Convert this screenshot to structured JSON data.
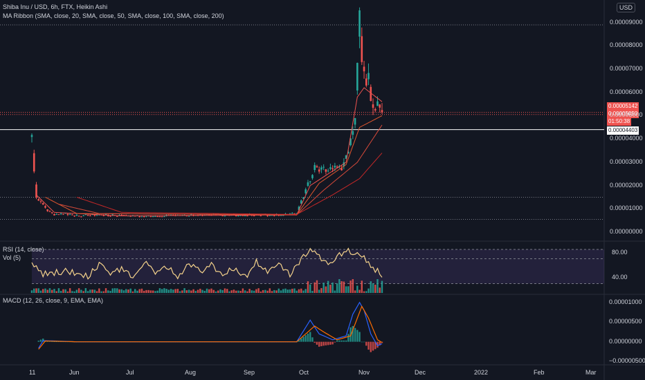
{
  "header": {
    "symbol_line": "Shiba Inu / USD, 6h, FTX, Heikin Ashi",
    "ma_ribbon": "MA Ribbon (SMA, close, 20, SMA, close, 50, SMA, close, 100, SMA, close, 200)",
    "currency": "USD"
  },
  "price_labels": {
    "last_price": "0.00005142",
    "bid_price": "0.00005050",
    "countdown": "01:50:38",
    "hline_price": "0.00004403"
  },
  "rsi": {
    "label": "RSI (14, close)",
    "vol_label": "Vol (5)"
  },
  "macd": {
    "label": "MACD (12, 26, close, 9, EMA, EMA)"
  },
  "colors": {
    "background": "#131722",
    "up": "#26a69a",
    "down": "#ef5350",
    "rsi": "#f5d38c",
    "macd": "#2962ff",
    "signal": "#ff6d00"
  },
  "chart_data": [
    {
      "type": "candlestick",
      "title": "Shiba Inu / USD, 6h, FTX, Heikin Ashi",
      "y_ticks": [
        "0.00009000",
        "0.00008000",
        "0.00007000",
        "0.00006000",
        "0.00005000",
        "0.00004000",
        "0.00003000",
        "0.00002000",
        "0.00001000",
        "0.00000000"
      ],
      "ylim": [
        0,
        8.9e-05
      ],
      "x_ticks": [
        "11",
        "Jun",
        "Jul",
        "Aug",
        "Sep",
        "Oct",
        "Nov",
        "Dec",
        "2022",
        "Feb",
        "Mar"
      ],
      "grid": false,
      "price_key": [
        [
          0,
          4e-05
        ],
        [
          2,
          1.5e-05
        ],
        [
          6,
          1e-05
        ],
        [
          10,
          7.2e-06
        ],
        [
          14,
          8e-06
        ],
        [
          20,
          7e-06
        ],
        [
          30,
          7.5e-06
        ],
        [
          40,
          7e-06
        ],
        [
          50,
          6.8e-06
        ],
        [
          60,
          7e-06
        ],
        [
          70,
          7.2e-06
        ],
        [
          80,
          7.5e-06
        ],
        [
          90,
          7.2e-06
        ],
        [
          100,
          7.4e-06
        ],
        [
          110,
          7.3e-06
        ],
        [
          118,
          8e-06
        ],
        [
          122,
          1.8e-05
        ],
        [
          126,
          2.8e-05
        ],
        [
          130,
          2.7e-05
        ],
        [
          138,
          2.8e-05
        ],
        [
          141,
          3.3e-05
        ],
        [
          144,
          5e-05
        ],
        [
          146,
          8.8e-05
        ],
        [
          148,
          7e-05
        ],
        [
          150,
          6.5e-05
        ],
        [
          153,
          5.5e-05
        ],
        [
          156,
          5.14e-05
        ]
      ],
      "ma_series": [
        {
          "name": "MA 20",
          "key": [
            [
              2,
              1.6e-05
            ],
            [
              10,
              8.5e-06
            ],
            [
              40,
              7e-06
            ],
            [
              118,
              7.4e-06
            ],
            [
              124,
              2e-05
            ],
            [
              140,
              3e-05
            ],
            [
              145,
              5.8e-05
            ],
            [
              148,
              6.2e-05
            ],
            [
              156,
              5.6e-05
            ]
          ]
        },
        {
          "name": "MA 50",
          "key": [
            [
              6,
              1.5e-05
            ],
            [
              20,
              8e-06
            ],
            [
              118,
              7.4e-06
            ],
            [
              128,
              2.1e-05
            ],
            [
              140,
              2.9e-05
            ],
            [
              146,
              4.5e-05
            ],
            [
              156,
              5e-05
            ]
          ]
        },
        {
          "name": "MA 100",
          "key": [
            [
              12,
              1.2e-05
            ],
            [
              30,
              8e-06
            ],
            [
              118,
              7.4e-06
            ],
            [
              130,
              1.8e-05
            ],
            [
              145,
              3e-05
            ],
            [
              156,
              4.6e-05
            ]
          ]
        },
        {
          "name": "MA 200",
          "key": [
            [
              20,
              1.5e-05
            ],
            [
              40,
              8.5e-06
            ],
            [
              118,
              7.6e-06
            ],
            [
              134,
              1.6e-05
            ],
            [
              146,
              2.3e-05
            ],
            [
              156,
              3.4e-05
            ]
          ]
        }
      ],
      "hlines": [
        4.403e-05,
        5.142e-05,
        5.05e-05,
        1.5e-05,
        5.5e-06
      ]
    },
    {
      "type": "line",
      "title": "RSI (14, close)",
      "y_ticks": [
        "80.00",
        "40.00"
      ],
      "ylim": [
        15,
        95
      ],
      "levels": [
        85,
        70,
        30
      ],
      "rsi_key": [
        [
          0,
          60
        ],
        [
          5,
          45
        ],
        [
          15,
          50
        ],
        [
          25,
          42
        ],
        [
          30,
          60
        ],
        [
          35,
          45
        ],
        [
          40,
          55
        ],
        [
          45,
          40
        ],
        [
          50,
          65
        ],
        [
          55,
          45
        ],
        [
          60,
          58
        ],
        [
          65,
          40
        ],
        [
          70,
          62
        ],
        [
          75,
          50
        ],
        [
          80,
          60
        ],
        [
          85,
          45
        ],
        [
          90,
          55
        ],
        [
          95,
          40
        ],
        [
          100,
          65
        ],
        [
          105,
          48
        ],
        [
          110,
          60
        ],
        [
          115,
          45
        ],
        [
          120,
          70
        ],
        [
          124,
          85
        ],
        [
          128,
          75
        ],
        [
          132,
          58
        ],
        [
          136,
          72
        ],
        [
          140,
          85
        ],
        [
          144,
          80
        ],
        [
          148,
          70
        ],
        [
          152,
          55
        ],
        [
          156,
          45
        ]
      ]
    },
    {
      "type": "line",
      "title": "MACD (12, 26, close, 9, EMA, EMA)",
      "y_ticks": [
        "0.00001000",
        "0.00000500",
        "0.00000000",
        "−0.00000500"
      ],
      "ylim": [
        -5.5e-06,
        1.1e-05
      ],
      "macd_key": [
        [
          0,
          -4.5e-06
        ],
        [
          5,
          3e-07
        ],
        [
          20,
          0
        ],
        [
          118,
          0
        ],
        [
          124,
          5.5e-06
        ],
        [
          128,
          2e-06
        ],
        [
          134,
          5e-07
        ],
        [
          140,
          1.5e-06
        ],
        [
          143,
          7e-06
        ],
        [
          146,
          1e-05
        ],
        [
          148,
          8e-06
        ],
        [
          151,
          2e-06
        ],
        [
          154,
          -1e-06
        ],
        [
          156,
          -5e-07
        ]
      ],
      "signal_key": [
        [
          0,
          -4e-06
        ],
        [
          6,
          2e-07
        ],
        [
          20,
          0
        ],
        [
          118,
          0
        ],
        [
          126,
          4e-06
        ],
        [
          130,
          2.5e-06
        ],
        [
          136,
          5e-07
        ],
        [
          142,
          1.5e-06
        ],
        [
          147,
          9e-06
        ],
        [
          150,
          6e-06
        ],
        [
          154,
          5e-07
        ],
        [
          156,
          -2e-07
        ]
      ]
    }
  ]
}
